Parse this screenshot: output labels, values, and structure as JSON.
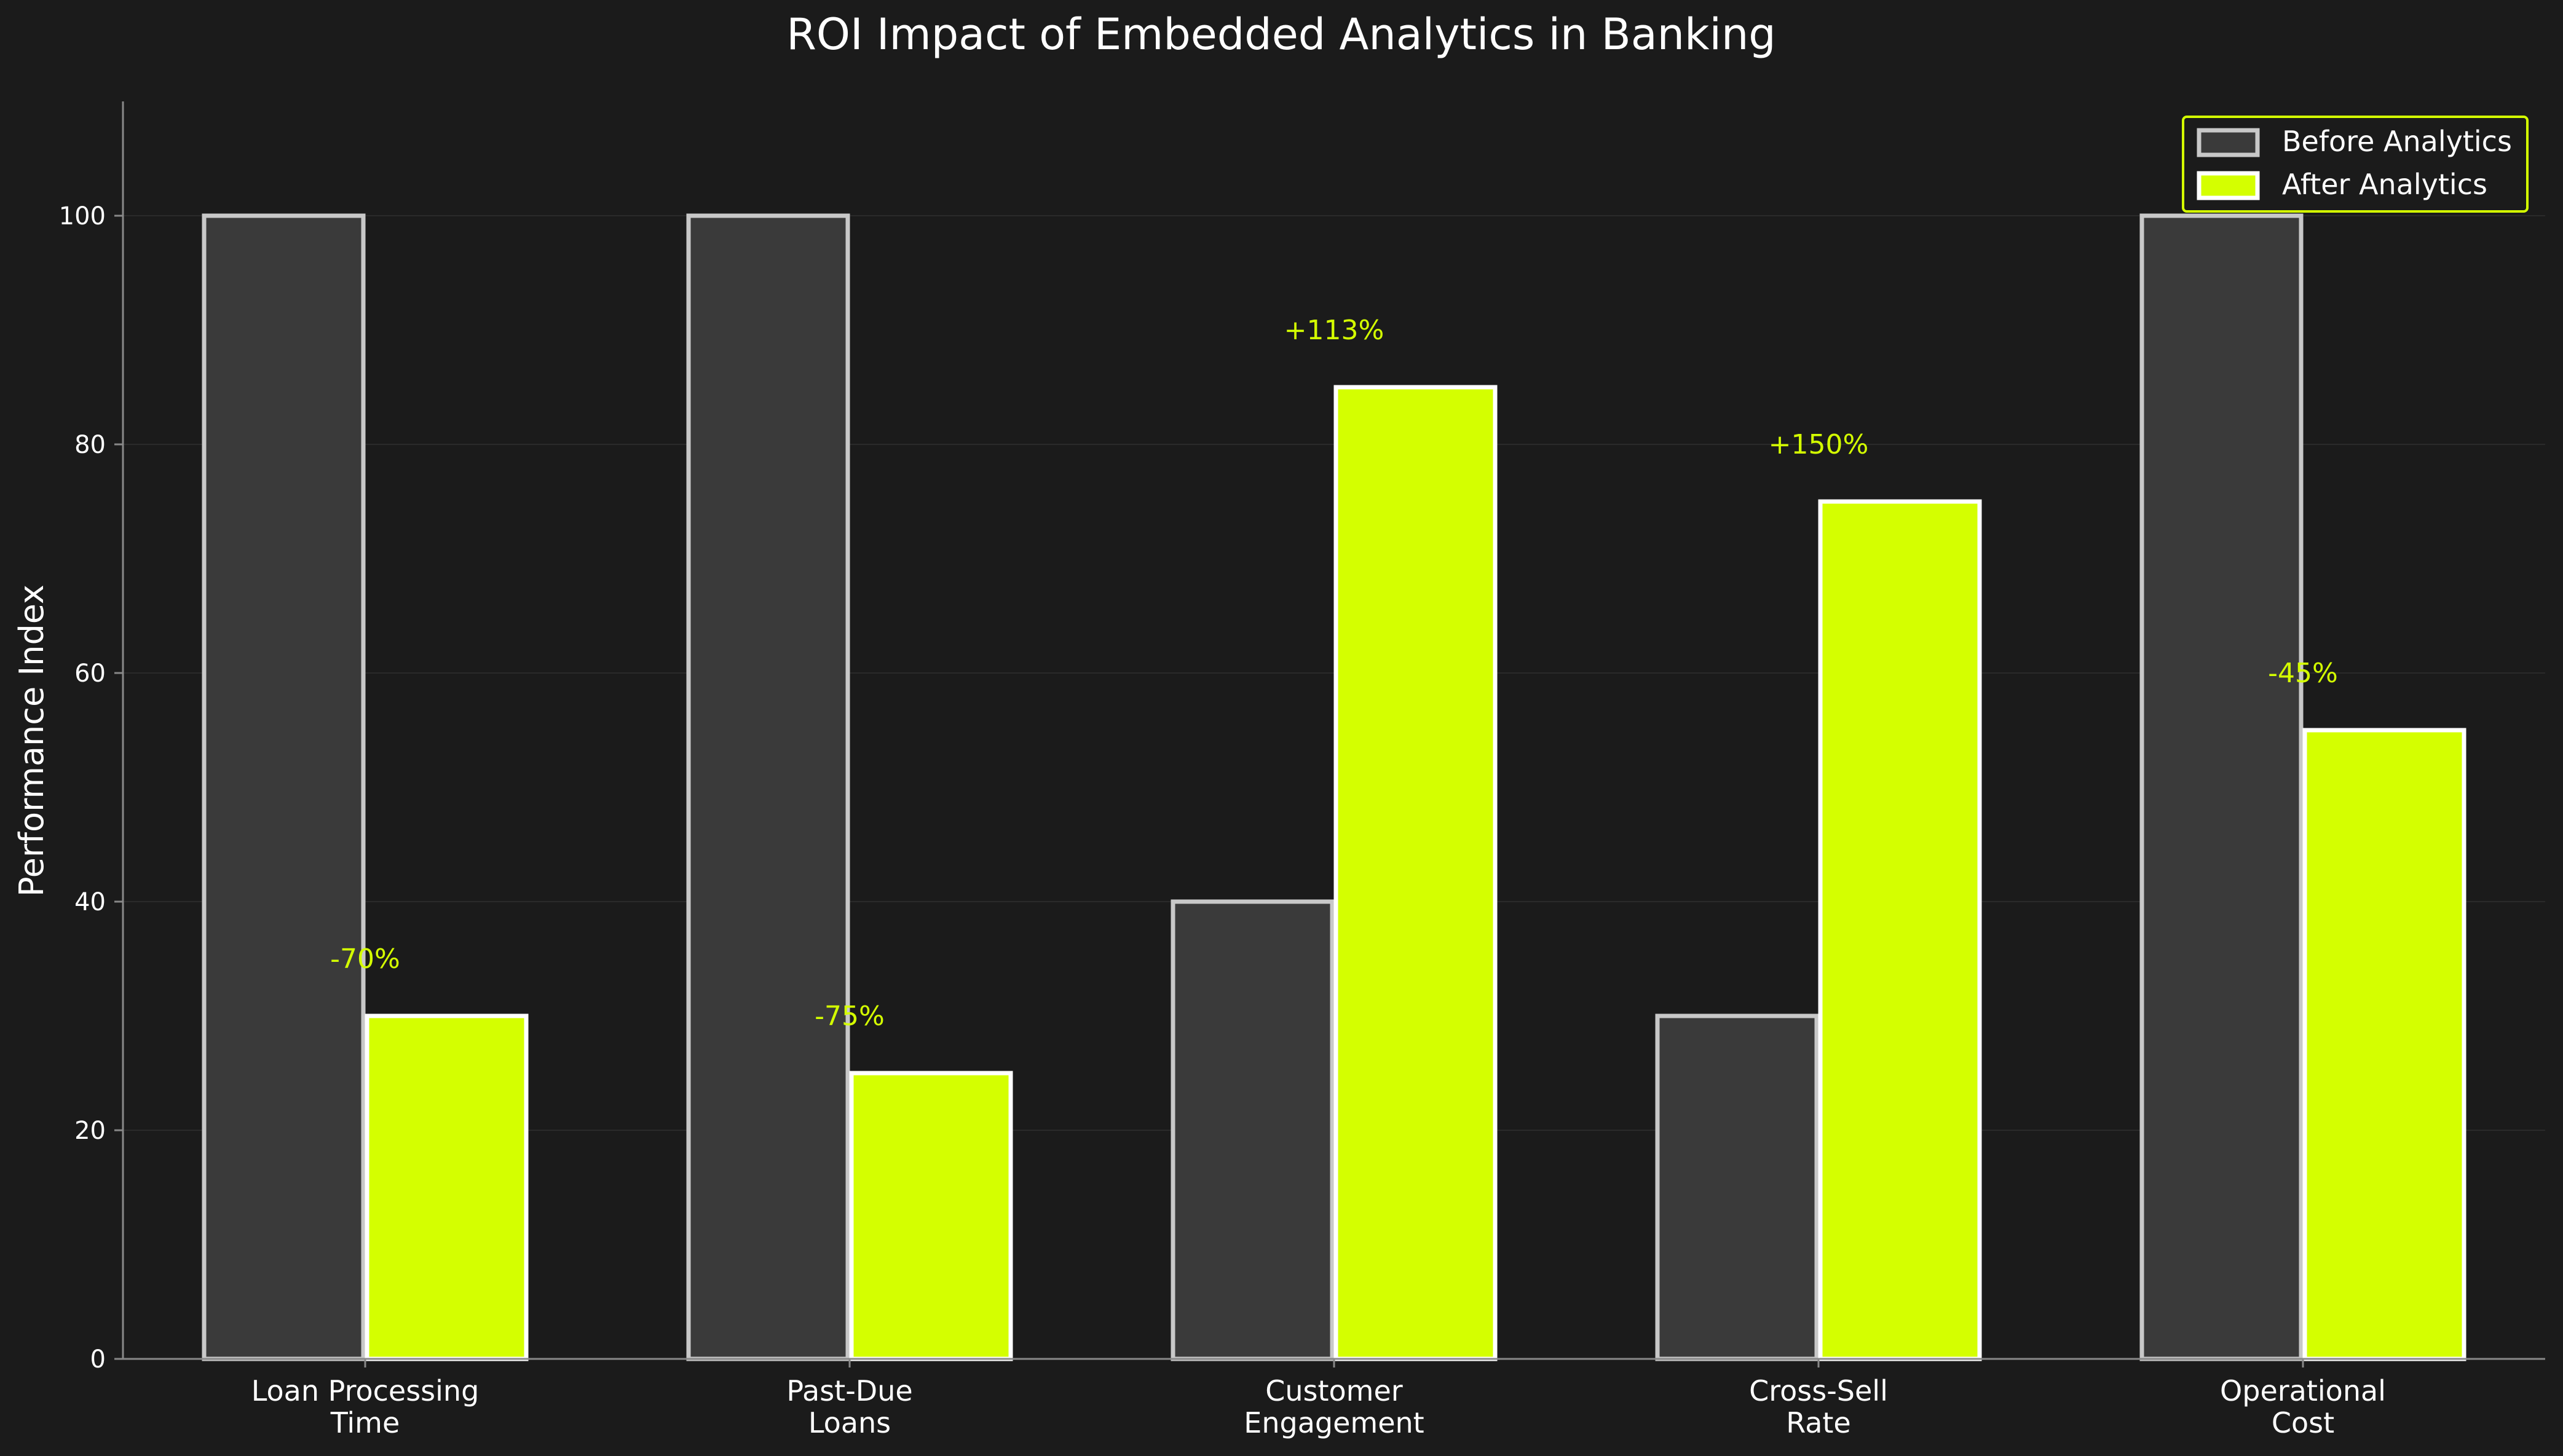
{
  "chart_data": {
    "type": "bar",
    "title": "ROI Impact of Embedded Analytics in Banking",
    "xlabel": "",
    "ylabel": "Performance Index",
    "ylim": [
      0,
      110
    ],
    "yticks": [
      0,
      20,
      40,
      60,
      80,
      100
    ],
    "grid": true,
    "legend_position": "top-right",
    "categories": [
      [
        "Loan Processing",
        "Time"
      ],
      [
        "Past-Due",
        "Loans"
      ],
      [
        "Customer",
        "Engagement"
      ],
      [
        "Cross-Sell",
        "Rate"
      ],
      [
        "Operational",
        "Cost"
      ]
    ],
    "series": [
      {
        "name": "Before Analytics",
        "values": [
          100,
          100,
          40,
          30,
          100
        ],
        "color": "#3a3a3a",
        "stroke": "#c8c8c8"
      },
      {
        "name": "After Analytics",
        "values": [
          30,
          25,
          85,
          75,
          55
        ],
        "color": "#d4ff00",
        "stroke": "#ffffff"
      }
    ],
    "annotations": [
      "-70%",
      "-75%",
      "+113%",
      "+150%",
      "-45%"
    ],
    "colors": {
      "background": "#1b1b1b",
      "accent": "#d4ff00",
      "axis": "#888888",
      "grid": "#2a2a2a"
    }
  }
}
